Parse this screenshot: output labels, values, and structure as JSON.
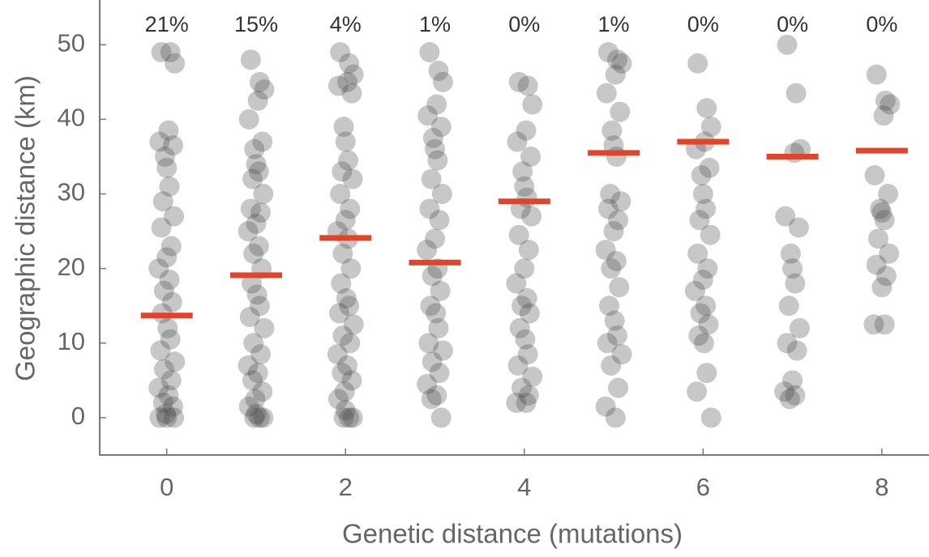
{
  "chart_data": {
    "type": "scatter",
    "xlabel": "Genetic distance (mutations)",
    "ylabel": "Geographic distance (km)",
    "xlim": [
      -0.75,
      8.5
    ],
    "xticks": [
      0,
      2,
      4,
      6,
      8
    ],
    "ylim": [
      -5,
      56
    ],
    "yticks": [
      0,
      10,
      20,
      30,
      40,
      50
    ],
    "series": [
      {
        "color": "#444444",
        "x": [
          -0.06,
          0.04,
          0.09,
          0.02,
          -0.08,
          0.07,
          -0.02,
          0,
          0.03,
          -0.04,
          0.08,
          -0.06,
          0.05,
          0,
          -0.09,
          0.03,
          -0.03,
          0.06,
          -0.05,
          0.01,
          0.04,
          -0.07,
          0.09,
          -0.03,
          0.05,
          -0.09,
          0.02,
          -0.04,
          0.07,
          -0.01,
          -0.08,
          0,
          0.08,
          0.94,
          1.04,
          1.09,
          1.02,
          0.92,
          1.07,
          0.98,
          1,
          1.03,
          0.96,
          1.08,
          0.94,
          1.05,
          1,
          0.91,
          1.03,
          0.97,
          1.06,
          0.95,
          1.01,
          1.04,
          0.93,
          1.09,
          0.97,
          1.05,
          0.91,
          1.02,
          0.96,
          1.07,
          0.99,
          0.92,
          1,
          1.08,
          0.98,
          1.04,
          1.94,
          2.04,
          2.09,
          2.02,
          1.92,
          2.07,
          1.98,
          2,
          2.03,
          1.96,
          2.08,
          1.94,
          2.05,
          2,
          1.91,
          2.03,
          1.97,
          2.06,
          1.95,
          2.01,
          2.04,
          1.93,
          2.09,
          1.97,
          2.05,
          1.91,
          2.02,
          1.96,
          2.07,
          1.99,
          1.92,
          2,
          2.08,
          1.98,
          2.04,
          2.94,
          3.04,
          3.09,
          3.02,
          2.92,
          3.07,
          2.98,
          3,
          3.03,
          2.96,
          3.08,
          2.94,
          3.05,
          3,
          2.91,
          3.03,
          2.97,
          3.06,
          2.95,
          3.01,
          3.04,
          2.93,
          3.09,
          2.97,
          3.05,
          2.91,
          3.02,
          2.96,
          3.07,
          3.94,
          4.04,
          4.09,
          4.02,
          3.92,
          4.07,
          3.98,
          4,
          4.03,
          3.96,
          4.08,
          3.94,
          4.05,
          4,
          3.91,
          4.03,
          3.97,
          4.06,
          3.95,
          4.01,
          4.04,
          3.93,
          4.09,
          3.97,
          4.05,
          3.91,
          4.02,
          4.94,
          5.04,
          5.09,
          5.02,
          4.92,
          5.07,
          4.98,
          5,
          5.03,
          4.96,
          5.08,
          4.94,
          5.05,
          5,
          4.91,
          5.03,
          4.97,
          5.06,
          4.95,
          5.01,
          5.04,
          4.93,
          5.09,
          4.97,
          5.05,
          4.91,
          5.02,
          5.94,
          6.04,
          6.09,
          6.02,
          5.92,
          6.07,
          5.98,
          6,
          6.03,
          5.96,
          6.08,
          5.94,
          6.05,
          6,
          5.91,
          6.03,
          5.97,
          6.06,
          5.95,
          6.01,
          6.04,
          5.93,
          6.09,
          6.94,
          7.04,
          7.09,
          7.02,
          6.92,
          7.07,
          6.98,
          7,
          7.03,
          6.96,
          7.08,
          6.94,
          7.05,
          7,
          6.91,
          7.03,
          6.97,
          7.94,
          8.04,
          8.09,
          8.02,
          7.92,
          8.07,
          7.98,
          8,
          8.03,
          7.96,
          8.08,
          7.94,
          8.05,
          8,
          7.91,
          8.03
        ],
        "values": [
          49,
          49,
          47.5,
          38.5,
          37,
          36.5,
          35,
          33.5,
          31,
          29,
          27,
          25.5,
          23,
          21.5,
          20,
          18.5,
          17,
          15.5,
          14,
          12,
          10.5,
          9,
          7.5,
          6.5,
          5,
          4,
          3,
          2,
          1.5,
          0.5,
          0,
          0,
          0,
          48,
          45,
          44,
          42.5,
          40,
          37,
          36,
          34,
          33,
          32,
          30,
          28,
          27.5,
          26,
          25,
          23,
          22,
          20,
          18,
          16.5,
          15,
          13.5,
          12,
          10,
          8.5,
          7,
          6,
          5,
          3.5,
          2.5,
          1.5,
          0.5,
          0,
          0,
          0,
          49,
          47.5,
          46,
          45,
          44.5,
          43.5,
          39,
          37,
          34.5,
          33,
          32,
          30,
          28,
          26.5,
          25,
          24,
          22,
          20,
          18,
          16,
          15,
          14,
          12.5,
          11,
          10,
          8.5,
          7,
          6,
          5,
          3.5,
          2.5,
          1,
          0,
          0,
          0,
          49,
          46.5,
          45,
          42,
          40.5,
          39,
          37.5,
          36,
          34.5,
          32,
          30,
          28,
          26.5,
          24,
          22.5,
          20,
          19,
          17,
          15,
          14,
          12,
          10,
          9,
          7.5,
          6,
          4.5,
          3,
          2.5,
          0,
          45,
          44.5,
          42,
          38.5,
          37,
          35,
          33,
          31,
          29.5,
          28,
          27,
          24.5,
          22.5,
          20,
          18,
          16,
          15,
          14,
          12,
          10.5,
          8.5,
          7,
          5.5,
          4,
          3,
          2,
          2,
          49,
          48,
          47.5,
          46,
          43.5,
          41,
          38.5,
          36.5,
          35,
          30,
          29,
          28,
          26.5,
          25,
          22.5,
          21,
          20,
          17.5,
          15,
          13,
          11,
          10,
          8.5,
          7,
          4,
          1.5,
          0,
          47.5,
          41.5,
          39,
          37,
          36,
          33.5,
          32.5,
          30,
          28,
          26.5,
          24.5,
          22,
          20,
          18.5,
          17,
          15,
          14,
          12.5,
          11,
          10,
          6,
          3.5,
          0,
          50,
          43.5,
          36,
          35.5,
          27,
          25.5,
          22,
          20,
          18,
          15,
          12,
          10,
          9,
          5,
          3.5,
          3,
          2.5,
          46,
          42.5,
          42,
          40.5,
          32.5,
          30,
          28,
          27.5,
          26.5,
          24,
          22,
          20.5,
          19,
          17.5,
          12.5,
          12.5
        ]
      }
    ],
    "medians": {
      "color": "#e0442a",
      "x": [
        0,
        1,
        2,
        3,
        4,
        5,
        6,
        7,
        8
      ],
      "values": [
        13.7,
        19.1,
        24.1,
        20.8,
        29.0,
        35.5,
        37.0,
        35.0,
        35.8
      ]
    },
    "annotations": {
      "x": [
        0,
        1,
        2,
        3,
        4,
        5,
        6,
        7,
        8
      ],
      "values": [
        21,
        15,
        4,
        1,
        0,
        1,
        0,
        0,
        0
      ],
      "value_labels": [
        "21%",
        "15%",
        "4%",
        "1%",
        "0%",
        "1%",
        "0%",
        "0%",
        "0%"
      ]
    }
  }
}
